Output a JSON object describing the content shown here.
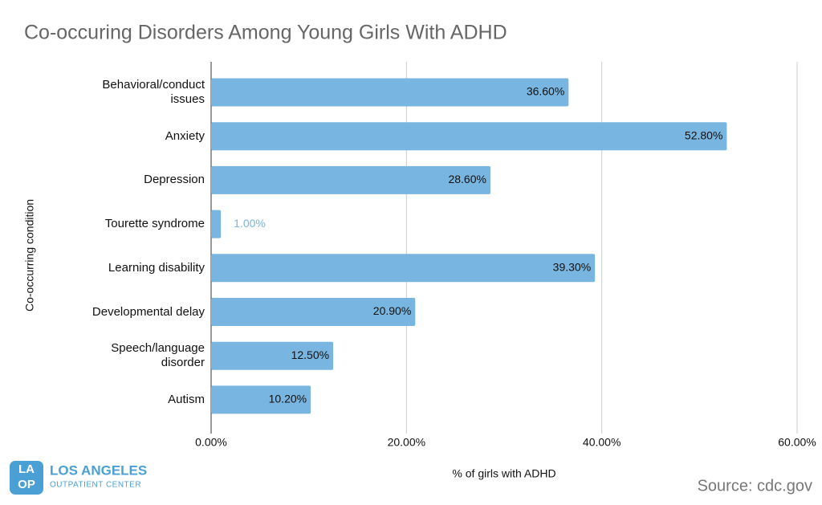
{
  "chart_data": {
    "type": "hbar",
    "title": "Co-occuring Disorders Among Young Girls With ADHD",
    "categories": [
      "Behavioral/conduct\nissues",
      "Anxiety",
      "Depression",
      "Tourette syndrome",
      "Learning disability",
      "Developmental delay",
      "Speech/language\ndisorder",
      "Autism"
    ],
    "values": [
      36.6,
      52.8,
      28.6,
      1.0,
      39.3,
      20.9,
      12.5,
      10.2
    ],
    "value_labels": [
      "36.60%",
      "52.80%",
      "28.60%",
      "1.00%",
      "39.30%",
      "20.90%",
      "12.50%",
      "10.20%"
    ],
    "color": "#78b5e0",
    "xlim": [
      0,
      60
    ],
    "xticks": [
      {
        "value": 0,
        "label": "0.00%"
      },
      {
        "value": 20,
        "label": "20.00%"
      },
      {
        "value": 40,
        "label": "40.00%"
      },
      {
        "value": 60,
        "label": "60.00%"
      }
    ],
    "grid": true,
    "x_label": "% of girls with ADHD",
    "y_label": "Co-occurring condition",
    "source": "Source: cdc.gov"
  },
  "logo": {
    "mark_top": "LA",
    "mark_bottom": "OP",
    "name": "LOS ANGELES",
    "subname": "OUTPATIENT CENTER"
  }
}
